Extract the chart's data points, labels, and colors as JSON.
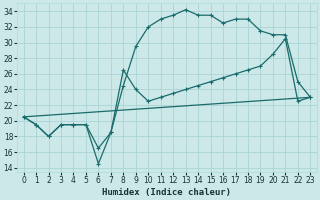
{
  "xlabel": "Humidex (Indice chaleur)",
  "bg_color": "#cce8e8",
  "grid_color": "#aad4d4",
  "line_color": "#1a6b6b",
  "xlim": [
    -0.5,
    23.5
  ],
  "ylim": [
    13.5,
    35
  ],
  "yticks": [
    14,
    16,
    18,
    20,
    22,
    24,
    26,
    28,
    30,
    32,
    34
  ],
  "xticks": [
    0,
    1,
    2,
    3,
    4,
    5,
    6,
    7,
    8,
    9,
    10,
    11,
    12,
    13,
    14,
    15,
    16,
    17,
    18,
    19,
    20,
    21,
    22,
    23
  ],
  "line1_x": [
    0,
    1,
    2,
    3,
    4,
    5,
    6,
    7,
    8,
    9,
    10,
    11,
    12,
    13,
    14,
    15,
    16,
    17,
    18,
    19,
    20,
    21,
    22,
    23
  ],
  "line1_y": [
    20.5,
    19.5,
    18.0,
    19.5,
    19.5,
    19.5,
    16.5,
    18.5,
    24.5,
    29.5,
    32.0,
    33.0,
    33.5,
    34.2,
    33.5,
    33.5,
    32.5,
    33.0,
    33.0,
    31.5,
    31.0,
    31.0,
    25.0,
    23.0
  ],
  "line2_x": [
    0,
    1,
    2,
    3,
    4,
    5,
    6,
    7,
    8,
    9,
    10,
    11,
    12,
    13,
    14,
    15,
    16,
    17,
    18,
    19,
    20,
    21,
    22,
    23
  ],
  "line2_y": [
    20.5,
    19.5,
    18.0,
    19.5,
    19.5,
    19.5,
    14.5,
    18.5,
    26.5,
    24.0,
    22.5,
    23.0,
    23.5,
    24.0,
    24.5,
    25.0,
    25.5,
    26.0,
    26.5,
    27.0,
    28.5,
    30.5,
    22.5,
    23.0
  ],
  "line3_x": [
    0,
    23
  ],
  "line3_y": [
    20.5,
    23.0
  ]
}
